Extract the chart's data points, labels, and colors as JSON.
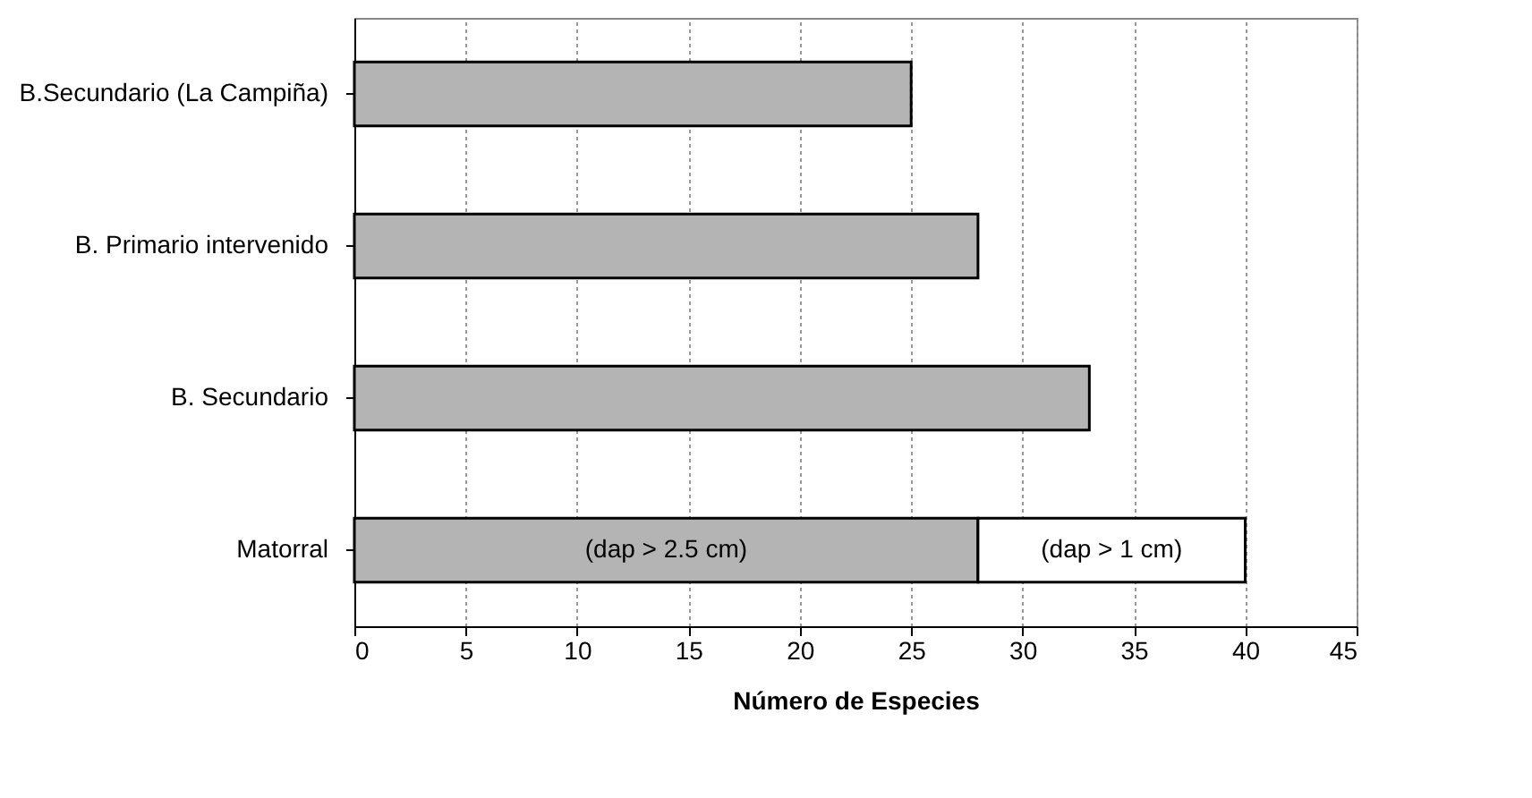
{
  "chart_data": {
    "type": "bar",
    "orientation": "horizontal",
    "stacked": true,
    "grid": "x",
    "xlabel": "Número de Especies",
    "categories": [
      "B.Secundario (La Campiña)",
      "B. Primario intervenido",
      "B. Secundario",
      "Matorral"
    ],
    "series": [
      {
        "name": "(dap > 2.5 cm)",
        "color": "#b4b4b4",
        "values": [
          25,
          28,
          33,
          28
        ]
      },
      {
        "name": "(dap > 1 cm)",
        "color": "#ffffff",
        "values": [
          null,
          null,
          null,
          12
        ]
      }
    ],
    "xlim": [
      0,
      45
    ],
    "xticks": [
      0,
      5,
      10,
      15,
      20,
      25,
      30,
      35,
      40,
      45
    ]
  }
}
